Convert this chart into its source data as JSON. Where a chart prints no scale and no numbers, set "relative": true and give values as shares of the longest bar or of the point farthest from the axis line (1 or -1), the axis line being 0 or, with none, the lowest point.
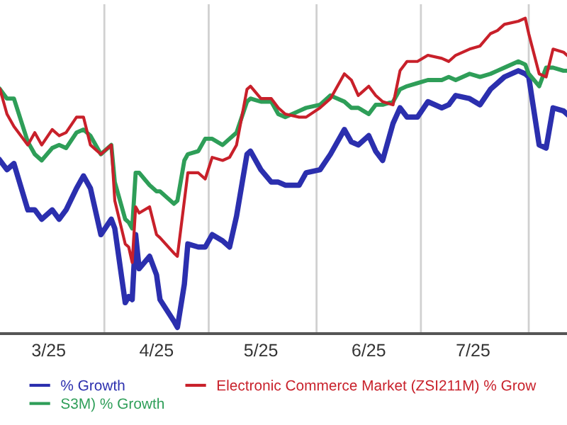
{
  "chart_data": {
    "type": "line",
    "relative": true,
    "grid": "x",
    "legend": "bottom",
    "x": [
      "2025-03-02",
      "2025-03-04",
      "2025-03-06",
      "2025-03-10",
      "2025-03-12",
      "2025-03-14",
      "2025-03-17",
      "2025-03-19",
      "2025-03-21",
      "2025-03-24",
      "2025-03-26",
      "2025-03-28",
      "2025-03-31",
      "2025-04-03",
      "2025-04-04",
      "2025-04-07",
      "2025-04-08",
      "2025-04-09",
      "2025-04-10",
      "2025-04-11",
      "2025-04-14",
      "2025-04-16",
      "2025-04-17",
      "2025-04-21",
      "2025-04-22",
      "2025-04-24",
      "2025-04-25",
      "2025-04-28",
      "2025-04-30",
      "2025-05-02",
      "2025-05-05",
      "2025-05-07",
      "2025-05-09",
      "2025-05-12",
      "2025-05-13",
      "2025-05-16",
      "2025-05-19",
      "2025-05-21",
      "2025-05-23",
      "2025-05-27",
      "2025-05-29",
      "2025-06-02",
      "2025-06-05",
      "2025-06-09",
      "2025-06-11",
      "2025-06-13",
      "2025-06-16",
      "2025-06-18",
      "2025-06-20",
      "2025-06-23",
      "2025-06-25",
      "2025-06-27",
      "2025-06-30",
      "2025-07-03",
      "2025-07-07",
      "2025-07-09",
      "2025-07-11",
      "2025-07-15",
      "2025-07-18",
      "2025-07-21",
      "2025-07-23",
      "2025-07-25",
      "2025-07-29",
      "2025-07-31",
      "2025-08-01",
      "2025-08-04",
      "2025-08-06",
      "2025-08-08",
      "2025-08-11",
      "2025-08-12"
    ],
    "xlim": [
      "2025-03-02",
      "2025-08-12"
    ],
    "xticks": [
      {
        "value": "2025-03-16",
        "label": "3/25"
      },
      {
        "value": "2025-04-01",
        "label": null
      },
      {
        "value": "2025-04-16",
        "label": "4/25"
      },
      {
        "value": "2025-05-01",
        "label": null
      },
      {
        "value": "2025-05-16",
        "label": "5/25"
      },
      {
        "value": "2025-06-01",
        "label": null
      },
      {
        "value": "2025-06-16",
        "label": "6/25"
      },
      {
        "value": "2025-07-01",
        "label": null
      },
      {
        "value": "2025-07-16",
        "label": "7/25"
      },
      {
        "value": "2025-08-01",
        "label": null
      }
    ],
    "series": [
      {
        "name": "% Growth",
        "color": "#2b2fae",
        "values": [
          0.54,
          0.51,
          0.53,
          0.38,
          0.38,
          0.35,
          0.38,
          0.35,
          0.38,
          0.45,
          0.49,
          0.45,
          0.3,
          0.35,
          0.32,
          0.08,
          0.1,
          0.09,
          0.3,
          0.19,
          0.23,
          0.17,
          0.09,
          0.02,
          0,
          0.14,
          0.27,
          0.26,
          0.26,
          0.3,
          0.28,
          0.26,
          0.36,
          0.56,
          0.57,
          0.51,
          0.47,
          0.47,
          0.46,
          0.46,
          0.5,
          0.51,
          0.56,
          0.64,
          0.6,
          0.59,
          0.62,
          0.57,
          0.54,
          0.66,
          0.71,
          0.68,
          0.68,
          0.73,
          0.71,
          0.72,
          0.75,
          0.74,
          0.72,
          0.77,
          0.79,
          0.81,
          0.83,
          0.82,
          0.81,
          0.59,
          0.58,
          0.71,
          0.7,
          0.69
        ]
      },
      {
        "name": "S3M) % Growth",
        "color": "#2e9e58",
        "values": [
          0.77,
          0.74,
          0.74,
          0.6,
          0.56,
          0.54,
          0.58,
          0.59,
          0.58,
          0.63,
          0.64,
          0.62,
          0.56,
          0.59,
          0.47,
          0.35,
          0.34,
          0.32,
          0.5,
          0.5,
          0.46,
          0.44,
          0.44,
          0.4,
          0.41,
          0.54,
          0.56,
          0.57,
          0.61,
          0.61,
          0.59,
          0.61,
          0.63,
          0.73,
          0.74,
          0.73,
          0.73,
          0.69,
          0.68,
          0.7,
          0.71,
          0.72,
          0.75,
          0.73,
          0.71,
          0.71,
          0.69,
          0.72,
          0.72,
          0.73,
          0.77,
          0.78,
          0.79,
          0.8,
          0.8,
          0.81,
          0.8,
          0.82,
          0.81,
          0.82,
          0.83,
          0.84,
          0.86,
          0.85,
          0.82,
          0.78,
          0.84,
          0.84,
          0.83,
          0.83
        ]
      },
      {
        "name": "Electronic Commerce Market (ZSI211M) % Grow",
        "color": "#c8202a",
        "values": [
          0.77,
          0.69,
          0.65,
          0.59,
          0.63,
          0.59,
          0.64,
          0.62,
          0.63,
          0.68,
          0.68,
          0.59,
          0.56,
          0.59,
          0.41,
          0.27,
          0.26,
          0.21,
          0.39,
          0.37,
          0.39,
          0.3,
          0.29,
          0.24,
          0.23,
          0.41,
          0.5,
          0.5,
          0.48,
          0.55,
          0.54,
          0.55,
          0.59,
          0.77,
          0.78,
          0.74,
          0.74,
          0.71,
          0.69,
          0.68,
          0.68,
          0.71,
          0.74,
          0.82,
          0.8,
          0.75,
          0.78,
          0.75,
          0.73,
          0.72,
          0.83,
          0.86,
          0.86,
          0.88,
          0.87,
          0.86,
          0.88,
          0.9,
          0.91,
          0.95,
          0.96,
          0.98,
          0.99,
          1,
          0.95,
          0.82,
          0.81,
          0.9,
          0.89,
          0.88
        ]
      }
    ]
  }
}
